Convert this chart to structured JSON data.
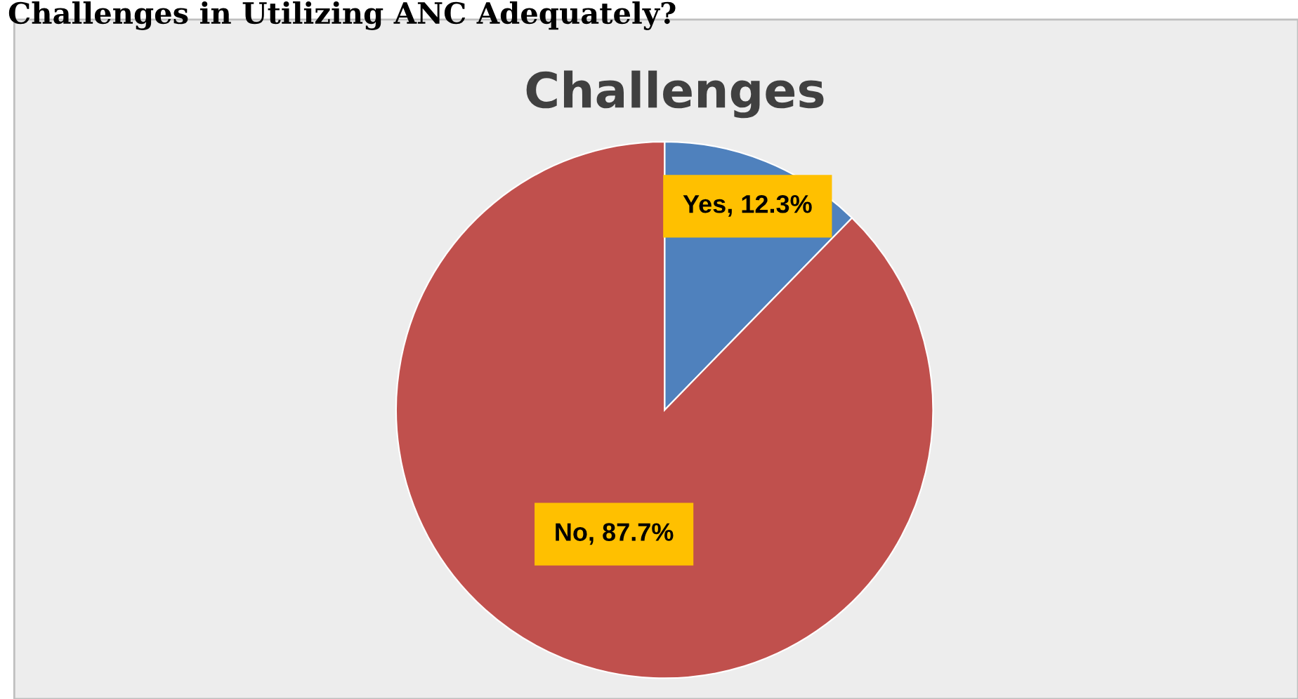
{
  "chart_data": {
    "type": "pie",
    "title": "Challenges",
    "annotations": [
      "Challenges in Utilizing ANC Adequately?"
    ],
    "categories": [
      "Yes",
      "No"
    ],
    "values": [
      12.3,
      87.7
    ],
    "colors": [
      "#4f81bd",
      "#c0504d"
    ],
    "value_labels": [
      "12.3%",
      "87.7%"
    ],
    "legend": false
  }
}
